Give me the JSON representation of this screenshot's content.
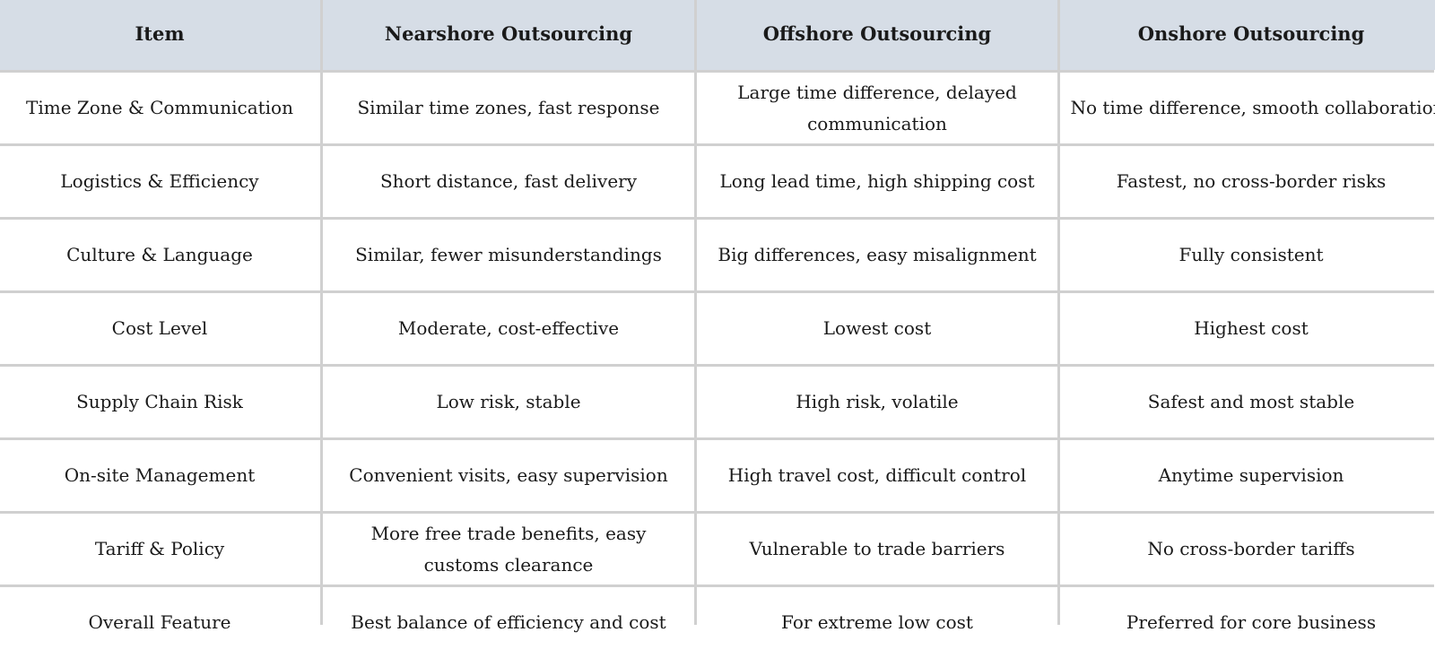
{
  "table": {
    "headers": [
      "Item",
      "Nearshore Outsourcing",
      "Offshore Outsourcing",
      "Onshore Outsourcing"
    ],
    "rows": [
      [
        "Time Zone & Communication",
        "Similar time zones, fast response",
        "Large time difference, delayed communication",
        "No time difference, smooth collaboration"
      ],
      [
        "Logistics & Efficiency",
        "Short distance, fast delivery",
        "Long lead time, high shipping cost",
        "Fastest, no cross-border risks"
      ],
      [
        "Culture & Language",
        "Similar, fewer misunderstandings",
        "Big differences, easy misalignment",
        "Fully consistent"
      ],
      [
        "Cost Level",
        "Moderate, cost-effective",
        "Lowest cost",
        "Highest cost"
      ],
      [
        "Supply Chain Risk",
        "Low risk, stable",
        "High risk, volatile",
        "Safest and most stable"
      ],
      [
        "On-site Management",
        "Convenient visits, easy supervision",
        "High travel cost, difficult control",
        "Anytime supervision"
      ],
      [
        "Tariff & Policy",
        "More free trade benefits, easy customs clearance",
        "Vulnerable to trade barriers",
        "No cross-border tariffs"
      ],
      [
        "Overall Feature",
        "Best balance of efficiency and cost",
        "For extreme low cost",
        "Preferred for core business"
      ]
    ]
  }
}
